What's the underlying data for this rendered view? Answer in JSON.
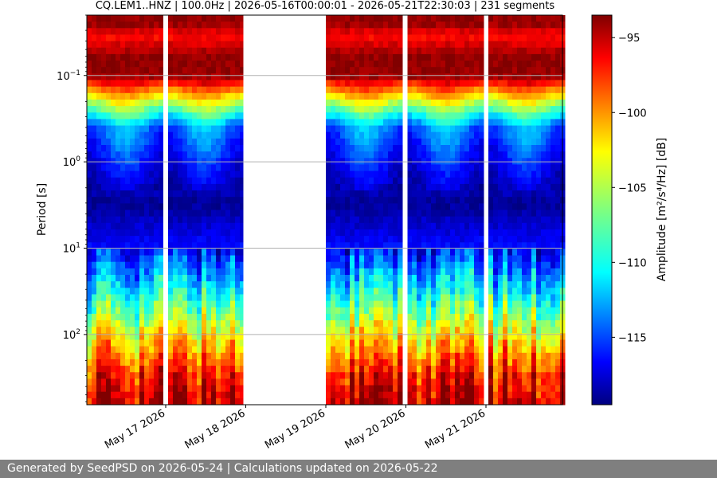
{
  "chart_data": {
    "type": "heatmap",
    "title": "CQ.LEM1..HNZ | 100.0Hz | 2026-05-16T00:00:01 - 2026-05-21T22:30:03 | 231 segments",
    "ylabel": "Period [s]",
    "xlabel": "",
    "y_scale": "log",
    "y_inverted": true,
    "ylim": [
      0.02,
      650
    ],
    "y_ticks": [
      {
        "value": 0.1,
        "base": "10",
        "exp": "−1"
      },
      {
        "value": 1,
        "base": "10",
        "exp": "0"
      },
      {
        "value": 10,
        "base": "10",
        "exp": "1"
      },
      {
        "value": 100,
        "base": "10",
        "exp": "2"
      }
    ],
    "x_range": [
      "2026-05-16T00:00:01",
      "2026-05-21T22:30:03"
    ],
    "x_ticks": [
      "May 17 2026",
      "May 18 2026",
      "May 19 2026",
      "May 20 2026",
      "May 21 2026"
    ],
    "x_tick_days": [
      1,
      2,
      3,
      4,
      5
    ],
    "data_gaps_days": [
      [
        0.97,
        1.01
      ],
      [
        1.97,
        3.0
      ],
      [
        3.98,
        4.02
      ],
      [
        4.98,
        5.01
      ]
    ],
    "grid": "horizontal",
    "colorbar": {
      "label": "Amplitude [m²/s⁴/Hz] [dB]",
      "range": [
        -119.5,
        -93.5
      ],
      "ticks": [
        "−95",
        "−100",
        "−105",
        "−110",
        "−115"
      ],
      "tick_values": [
        -95,
        -100,
        -105,
        -110,
        -115
      ],
      "colormap": "jet"
    },
    "approx_spectrum_profile": [
      {
        "period_s": 0.025,
        "db": -94
      },
      {
        "period_s": 0.035,
        "db": -97
      },
      {
        "period_s": 0.06,
        "db": -94
      },
      {
        "period_s": 0.1,
        "db": -94
      },
      {
        "period_s": 0.2,
        "db": -104
      },
      {
        "period_s": 0.4,
        "db": -113
      },
      {
        "period_s": 1,
        "db": -116
      },
      {
        "period_s": 3,
        "db": -119
      },
      {
        "period_s": 10,
        "db": -116
      },
      {
        "period_s": 30,
        "db": -110
      },
      {
        "period_s": 100,
        "db": -103
      },
      {
        "period_s": 300,
        "db": -97
      },
      {
        "period_s": 600,
        "db": -95
      }
    ]
  },
  "footer": {
    "text": "Generated by SeedPSD on 2026-05-24 | Calculations updated on 2026-05-22"
  }
}
